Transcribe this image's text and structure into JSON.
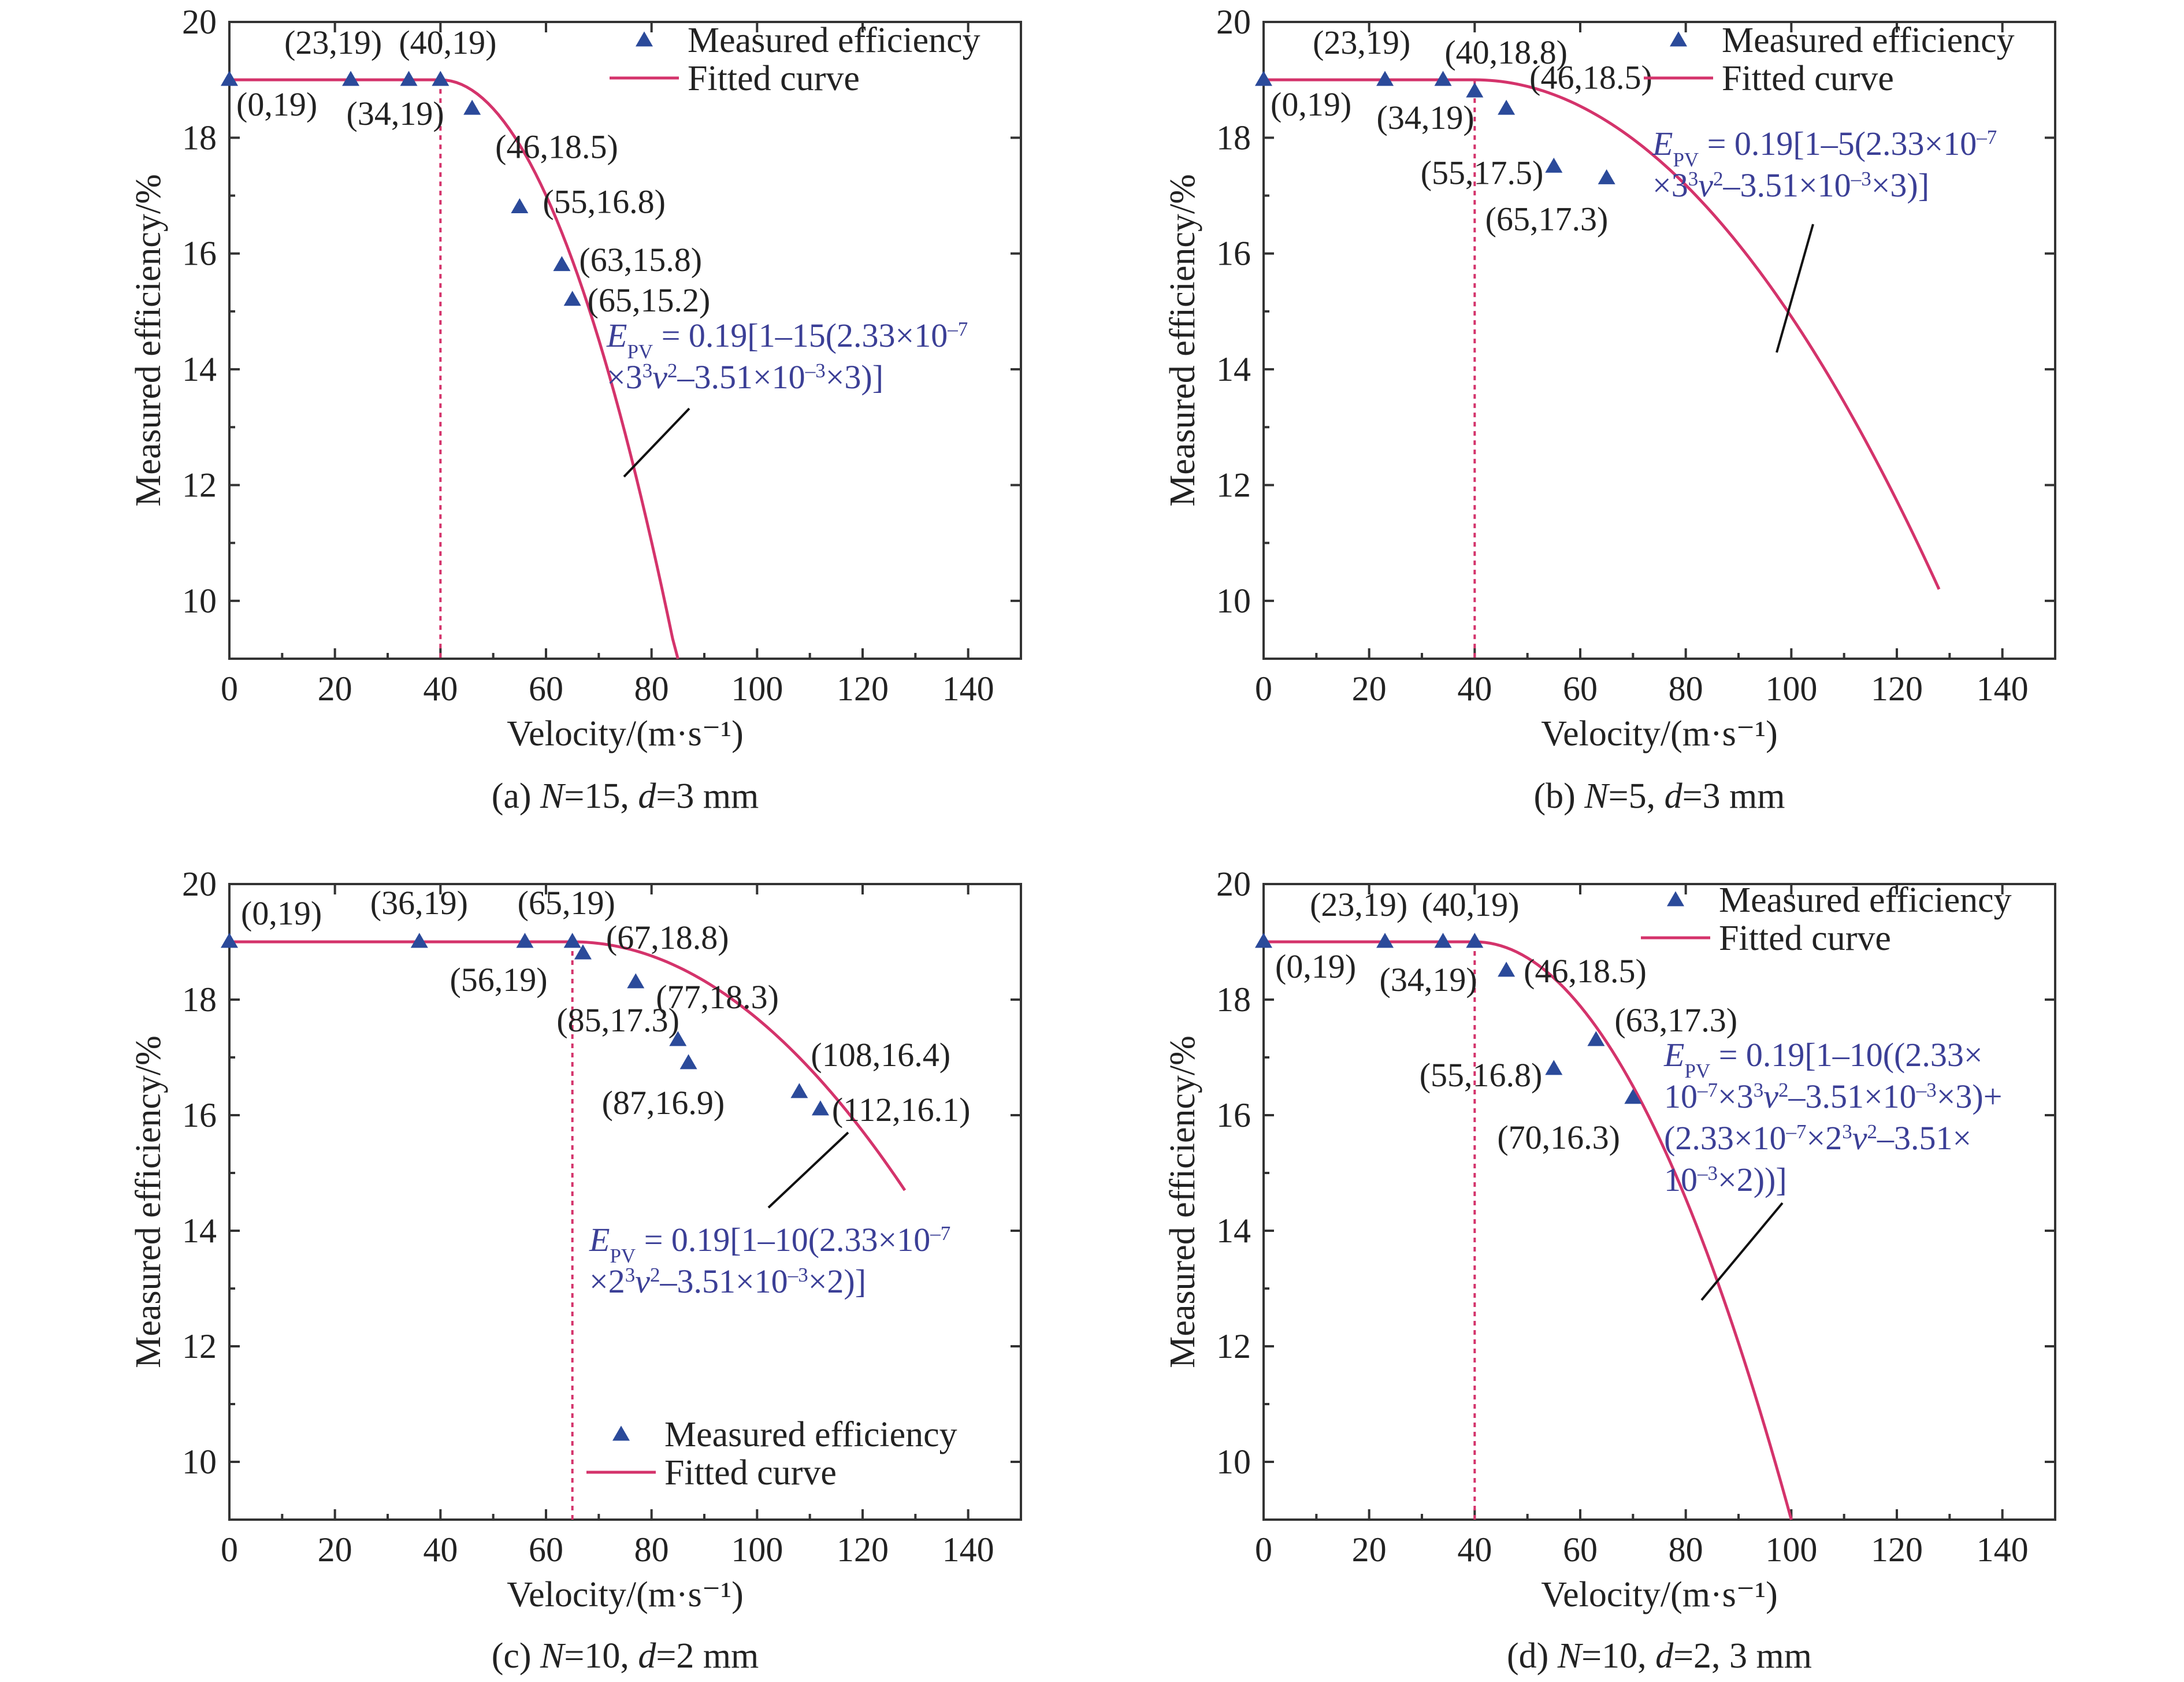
{
  "colors": {
    "marker": "#2b4a9a",
    "fit": "#d4336b",
    "equation": "#3b3f96"
  },
  "chart_data": [
    {
      "type": "scatter",
      "caption": "(a) N=15, d=3 mm",
      "caption_parts": [
        {
          "t": "(a) "
        },
        {
          "t": "N",
          "i": true
        },
        {
          "t": "=15, "
        },
        {
          "t": "d",
          "i": true
        },
        {
          "t": "=3 mm"
        }
      ],
      "xlabel": "Velocity/(m·s⁻¹)",
      "ylabel": "Measured efficiency/%",
      "xlim": [
        0,
        150
      ],
      "ylim": [
        9,
        20
      ],
      "xticks": [
        0,
        20,
        40,
        60,
        80,
        100,
        120,
        140
      ],
      "yticks": [
        10,
        12,
        14,
        16,
        18,
        20
      ],
      "legend": "top-right",
      "series": [
        {
          "name": "Measured efficiency",
          "points": [
            [
              0,
              19
            ],
            [
              23,
              19
            ],
            [
              34,
              19
            ],
            [
              40,
              19
            ],
            [
              46,
              18.5
            ],
            [
              55,
              16.8
            ],
            [
              63,
              15.8
            ],
            [
              65,
              15.2
            ]
          ],
          "labels": [
            "(0,19)",
            "(23,19)",
            "(34,19)",
            "(40,19)",
            "(46,18.5)",
            "(55,16.8)",
            "(63,15.8)",
            "(65,15.2)"
          ]
        },
        {
          "name": "Fitted curve",
          "N": 15,
          "threshold": 40,
          "xmax": 85
        }
      ],
      "annotation": {
        "lines": [
          [
            {
              "t": "E",
              "i": true
            },
            {
              "t": "PV",
              "sub": true
            },
            {
              "t": " = 0.19[1–15(2.33×10"
            },
            {
              "t": "–7",
              "sup": true
            }
          ],
          [
            {
              "t": "×3"
            },
            {
              "t": "3",
              "sup": true
            },
            {
              "t": "v",
              "i": true
            },
            {
              "t": "2",
              "sup": true
            },
            {
              "t": "–3.51×10"
            },
            {
              "t": "–3",
              "sup": true
            },
            {
              "t": "×3)]"
            }
          ]
        ]
      }
    },
    {
      "type": "scatter",
      "caption": "(b) N=5, d=3 mm",
      "caption_parts": [
        {
          "t": "(b) "
        },
        {
          "t": "N",
          "i": true
        },
        {
          "t": "=5, "
        },
        {
          "t": "d",
          "i": true
        },
        {
          "t": "=3 mm"
        }
      ],
      "xlabel": "Velocity/(m·s⁻¹)",
      "ylabel": "Measured efficiency/%",
      "xlim": [
        0,
        150
      ],
      "ylim": [
        9,
        20
      ],
      "xticks": [
        0,
        20,
        40,
        60,
        80,
        100,
        120,
        140
      ],
      "yticks": [
        10,
        12,
        14,
        16,
        18,
        20
      ],
      "legend": "top-right",
      "series": [
        {
          "name": "Measured efficiency",
          "points": [
            [
              0,
              19
            ],
            [
              23,
              19
            ],
            [
              34,
              19
            ],
            [
              40,
              18.8
            ],
            [
              46,
              18.5
            ],
            [
              55,
              17.5
            ],
            [
              65,
              17.3
            ]
          ],
          "labels": [
            "(0,19)",
            "(23,19)",
            "(34,19)",
            "(40,18.8)",
            "(46,18.5)",
            "(55,17.5)",
            "(65,17.3)"
          ]
        },
        {
          "name": "Fitted curve",
          "N": 5,
          "threshold": 40,
          "xmax": 128
        }
      ],
      "annotation": {
        "lines": [
          [
            {
              "t": "E",
              "i": true
            },
            {
              "t": "PV",
              "sub": true
            },
            {
              "t": " = 0.19[1–5(2.33×10"
            },
            {
              "t": "–7",
              "sup": true
            }
          ],
          [
            {
              "t": "×3"
            },
            {
              "t": "3",
              "sup": true
            },
            {
              "t": "v",
              "i": true
            },
            {
              "t": "2",
              "sup": true
            },
            {
              "t": "–3.51×10"
            },
            {
              "t": "–3",
              "sup": true
            },
            {
              "t": "×3)]"
            }
          ]
        ]
      }
    },
    {
      "type": "scatter",
      "caption": "(c) N=10, d=2 mm",
      "caption_parts": [
        {
          "t": "(c) "
        },
        {
          "t": "N",
          "i": true
        },
        {
          "t": "=10, "
        },
        {
          "t": "d",
          "i": true
        },
        {
          "t": "=2 mm"
        }
      ],
      "xlabel": "Velocity/(m·s⁻¹)",
      "ylabel": "Measured efficiency/%",
      "xlim": [
        0,
        150
      ],
      "ylim": [
        9,
        20
      ],
      "xticks": [
        0,
        20,
        40,
        60,
        80,
        100,
        120,
        140
      ],
      "yticks": [
        10,
        12,
        14,
        16,
        18,
        20
      ],
      "legend": "bottom-right",
      "series": [
        {
          "name": "Measured efficiency",
          "points": [
            [
              0,
              19
            ],
            [
              36,
              19
            ],
            [
              56,
              19
            ],
            [
              65,
              19
            ],
            [
              67,
              18.8
            ],
            [
              77,
              18.3
            ],
            [
              85,
              17.3
            ],
            [
              87,
              16.9
            ],
            [
              108,
              16.4
            ],
            [
              112,
              16.1
            ]
          ],
          "labels": [
            "(0,19)",
            "(36,19)",
            "(56,19)",
            "(65,19)",
            "(67,18.8)",
            "(77,18.3)",
            "(85,17.3)",
            "(87,16.9)",
            "(108,16.4)",
            "(112,16.1)"
          ]
        },
        {
          "name": "Fitted curve",
          "N": 10,
          "threshold": 65,
          "xmax": 128
        }
      ],
      "annotation": {
        "lines": [
          [
            {
              "t": "E",
              "i": true
            },
            {
              "t": "PV",
              "sub": true
            },
            {
              "t": " = 0.19[1–10(2.33×10"
            },
            {
              "t": "–7",
              "sup": true
            }
          ],
          [
            {
              "t": "×2"
            },
            {
              "t": "3",
              "sup": true
            },
            {
              "t": "v",
              "i": true
            },
            {
              "t": "2",
              "sup": true
            },
            {
              "t": "–3.51×10"
            },
            {
              "t": "–3",
              "sup": true
            },
            {
              "t": "×2)]"
            }
          ]
        ]
      }
    },
    {
      "type": "scatter",
      "caption": "(d) N=10, d=2, 3 mm",
      "caption_parts": [
        {
          "t": "(d) "
        },
        {
          "t": "N",
          "i": true
        },
        {
          "t": "=10, "
        },
        {
          "t": "d",
          "i": true
        },
        {
          "t": "=2, 3 mm"
        }
      ],
      "xlabel": "Velocity/(m·s⁻¹)",
      "ylabel": "Measured efficiency/%",
      "xlim": [
        0,
        150
      ],
      "ylim": [
        9,
        20
      ],
      "xticks": [
        0,
        20,
        40,
        60,
        80,
        100,
        120,
        140
      ],
      "yticks": [
        10,
        12,
        14,
        16,
        18,
        20
      ],
      "legend": "top-right",
      "series": [
        {
          "name": "Measured efficiency",
          "points": [
            [
              0,
              19
            ],
            [
              23,
              19
            ],
            [
              34,
              19
            ],
            [
              40,
              19
            ],
            [
              46,
              18.5
            ],
            [
              55,
              16.8
            ],
            [
              63,
              17.3
            ],
            [
              70,
              16.3
            ]
          ],
          "labels": [
            "(0,19)",
            "(23,19)",
            "(34,19)",
            "(40,19)",
            "(46,18.5)",
            "(55,16.8)",
            "(63,17.3)",
            "(70,16.3)"
          ]
        },
        {
          "name": "Fitted curve",
          "N": 10,
          "threshold": 40,
          "xmax": 100
        }
      ],
      "annotation": {
        "lines": [
          [
            {
              "t": "E",
              "i": true
            },
            {
              "t": "PV",
              "sub": true
            },
            {
              "t": " = 0.19[1–10((2.33×"
            }
          ],
          [
            {
              "t": "10"
            },
            {
              "t": "–7",
              "sup": true
            },
            {
              "t": "×3"
            },
            {
              "t": "3",
              "sup": true
            },
            {
              "t": "v",
              "i": true
            },
            {
              "t": "2",
              "sup": true
            },
            {
              "t": "–3.51×10"
            },
            {
              "t": "–3",
              "sup": true
            },
            {
              "t": "×3)+"
            }
          ],
          [
            {
              "t": "(2.33×10"
            },
            {
              "t": "–7",
              "sup": true
            },
            {
              "t": "×2"
            },
            {
              "t": "3",
              "sup": true
            },
            {
              "t": "v",
              "i": true
            },
            {
              "t": "2",
              "sup": true
            },
            {
              "t": "–3.51×"
            }
          ],
          [
            {
              "t": "10"
            },
            {
              "t": "–3",
              "sup": true
            },
            {
              "t": "×2))]"
            }
          ]
        ]
      }
    }
  ]
}
